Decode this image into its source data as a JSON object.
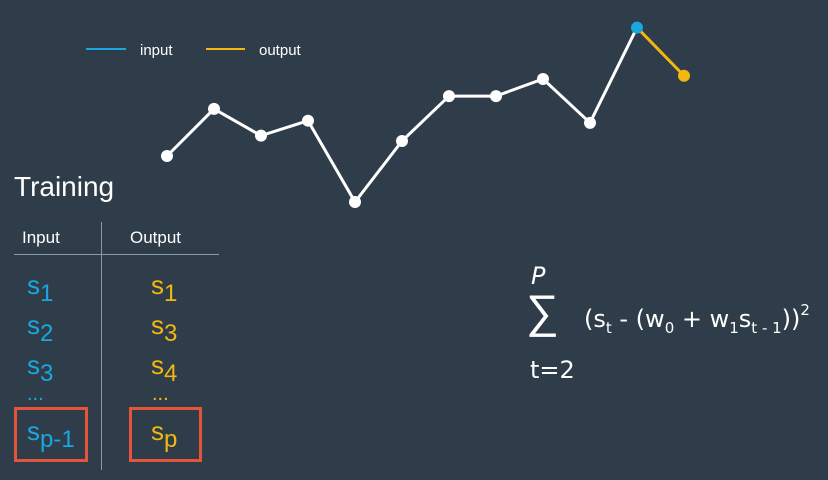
{
  "legend": {
    "input_label": "input",
    "output_label": "output"
  },
  "colors": {
    "background": "#2f3d4a",
    "input": "#1aa7e0",
    "output": "#f2b80f",
    "line": "#ffffff",
    "highlight": "#e2553b"
  },
  "series": {
    "main_values": [
      0.0,
      0.44,
      0.19,
      0.33,
      -0.43,
      0.14,
      0.56,
      0.56,
      0.72,
      0.31,
      1.2
    ],
    "output_values": [
      1.2,
      0.75
    ]
  },
  "training": {
    "title": "Training",
    "header_input": "Input",
    "header_output": "Output",
    "rows": [
      {
        "input_base": "s",
        "input_sub": "1",
        "output_base": "s",
        "output_sub": "1"
      },
      {
        "input_base": "s",
        "input_sub": "2",
        "output_base": "s",
        "output_sub": "3"
      },
      {
        "input_base": "s",
        "input_sub": "3",
        "output_base": "s",
        "output_sub": "4"
      }
    ],
    "ellipsis": "...",
    "last_row": {
      "input_base": "s",
      "input_sub": "p-1",
      "output_base": "s",
      "output_sub": "p"
    }
  },
  "formula": {
    "upper": "P",
    "sigma": "∑",
    "lower": "t=2",
    "open": "(s",
    "sub_t": "t",
    "minus_open": " - (w",
    "sub_0": "0",
    "plus_w": " + w",
    "sub_1": "1",
    "s": "s",
    "sub_t1": "t - 1",
    "close": "))",
    "power": "2"
  }
}
